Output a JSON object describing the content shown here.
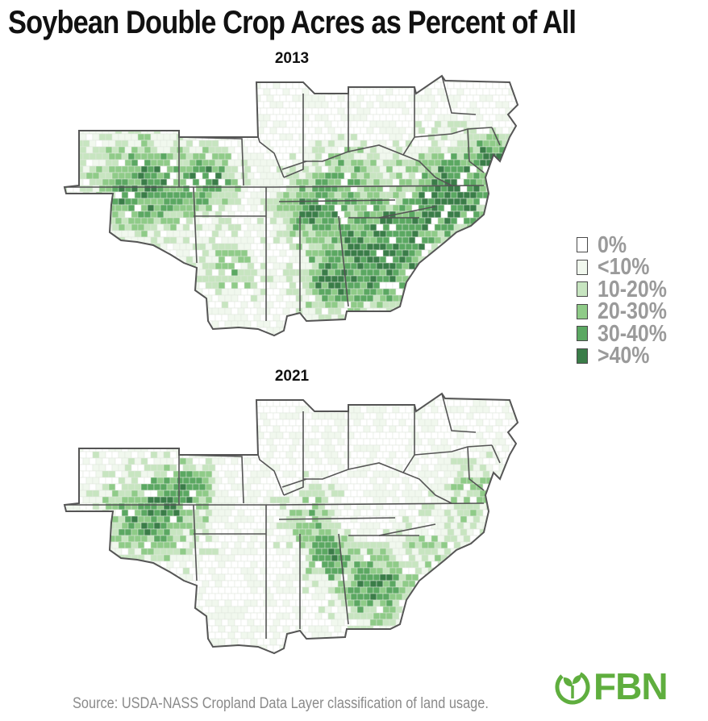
{
  "title": "Soybean Double Crop Acres as Percent of All",
  "maps": [
    {
      "year": "2013"
    },
    {
      "year": "2021"
    }
  ],
  "legend": {
    "items": [
      {
        "label": "0%",
        "color": "#ffffff"
      },
      {
        "label": "<10%",
        "color": "#f1f8ee"
      },
      {
        "label": "10-20%",
        "color": "#c7e5c0"
      },
      {
        "label": "20-30%",
        "color": "#8fcb88"
      },
      {
        "label": "30-40%",
        "color": "#5ba862"
      },
      {
        "label": ">40%",
        "color": "#3a7d48"
      }
    ]
  },
  "source": "Source: USDA-NASS Cropland Data Layer classification of land usage.",
  "logo": {
    "text": "FBN",
    "color": "#5fae3e"
  },
  "colors": {
    "state_border": "#555555",
    "county_border": "#dfe6dc",
    "title": "#111111",
    "legend_text": "#9a9a9a"
  }
}
